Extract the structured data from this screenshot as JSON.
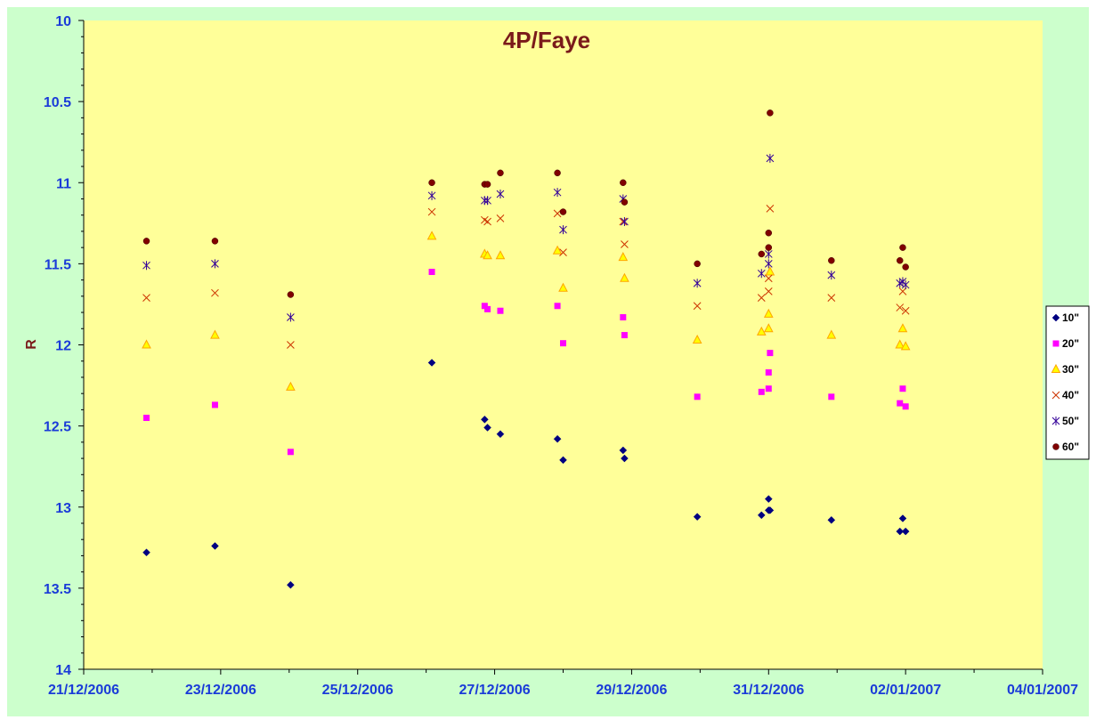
{
  "chart_data": {
    "type": "scatter",
    "title": "4P/Faye",
    "xlabel": "",
    "ylabel": "R",
    "y_inverted": true,
    "ylim": [
      10,
      14
    ],
    "yticks": [
      10,
      10.5,
      11,
      11.5,
      12,
      12.5,
      13,
      13.5,
      14
    ],
    "ytick_labels": [
      "10",
      "10.5",
      "11",
      "11.5",
      "12",
      "12.5",
      "13",
      "13.5",
      "14"
    ],
    "xlim": [
      "2006-12-21",
      "2007-01-04"
    ],
    "xticks": [
      "2006-12-21",
      "2006-12-23",
      "2006-12-25",
      "2006-12-27",
      "2006-12-29",
      "2006-12-31",
      "2007-01-02",
      "2007-01-04"
    ],
    "xtick_labels": [
      "21/12/2006",
      "23/12/2006",
      "25/12/2006",
      "27/12/2006",
      "29/12/2006",
      "31/12/2006",
      "02/01/2007",
      "04/01/2007"
    ],
    "legend_position": "right",
    "grid": false,
    "colors": {
      "outer_background": "#ccffcc",
      "plot_background": "#ffff99",
      "axis": "#000000"
    },
    "series": [
      {
        "name": "10\"",
        "marker": "diamond",
        "color": "#000080",
        "points": [
          [
            "2006-12-21T22:00",
            13.28
          ],
          [
            "2006-12-22T22:00",
            13.24
          ],
          [
            "2006-12-24T00:30",
            13.48
          ],
          [
            "2006-12-26T02:00",
            12.11
          ],
          [
            "2006-12-26T20:30",
            12.46
          ],
          [
            "2006-12-26T21:30",
            12.51
          ],
          [
            "2006-12-27T02:00",
            12.55
          ],
          [
            "2006-12-27T22:00",
            12.58
          ],
          [
            "2006-12-28T00:00",
            12.71
          ],
          [
            "2006-12-28T21:00",
            12.65
          ],
          [
            "2006-12-28T21:30",
            12.7
          ],
          [
            "2006-12-29T23:00",
            13.06
          ],
          [
            "2006-12-30T21:30",
            13.05
          ],
          [
            "2006-12-31T00:00",
            12.95
          ],
          [
            "2006-12-31T00:00",
            13.02
          ],
          [
            "2006-12-31T00:30",
            13.02
          ],
          [
            "2006-12-31T22:00",
            13.08
          ],
          [
            "2007-01-01T22:00",
            13.15
          ],
          [
            "2007-01-01T23:00",
            13.07
          ],
          [
            "2007-01-02T00:00",
            13.15
          ]
        ]
      },
      {
        "name": "20\"",
        "marker": "square",
        "color": "#ff00ff",
        "points": [
          [
            "2006-12-21T22:00",
            12.45
          ],
          [
            "2006-12-22T22:00",
            12.37
          ],
          [
            "2006-12-24T00:30",
            12.66
          ],
          [
            "2006-12-26T02:00",
            11.55
          ],
          [
            "2006-12-26T20:30",
            11.76
          ],
          [
            "2006-12-26T21:30",
            11.78
          ],
          [
            "2006-12-27T02:00",
            11.79
          ],
          [
            "2006-12-27T22:00",
            11.76
          ],
          [
            "2006-12-28T00:00",
            11.99
          ],
          [
            "2006-12-28T21:00",
            11.83
          ],
          [
            "2006-12-28T21:30",
            11.94
          ],
          [
            "2006-12-29T23:00",
            12.32
          ],
          [
            "2006-12-30T21:30",
            12.29
          ],
          [
            "2006-12-31T00:00",
            12.17
          ],
          [
            "2006-12-31T00:00",
            12.27
          ],
          [
            "2006-12-31T00:30",
            12.05
          ],
          [
            "2006-12-31T22:00",
            12.32
          ],
          [
            "2007-01-01T22:00",
            12.36
          ],
          [
            "2007-01-01T23:00",
            12.27
          ],
          [
            "2007-01-02T00:00",
            12.38
          ]
        ]
      },
      {
        "name": "30\"",
        "marker": "triangle",
        "color": "#ffa500",
        "points": [
          [
            "2006-12-21T22:00",
            12.0
          ],
          [
            "2006-12-22T22:00",
            11.94
          ],
          [
            "2006-12-24T00:30",
            12.26
          ],
          [
            "2006-12-26T02:00",
            11.33
          ],
          [
            "2006-12-26T20:30",
            11.44
          ],
          [
            "2006-12-26T21:30",
            11.45
          ],
          [
            "2006-12-27T02:00",
            11.45
          ],
          [
            "2006-12-27T22:00",
            11.42
          ],
          [
            "2006-12-28T00:00",
            11.65
          ],
          [
            "2006-12-28T21:00",
            11.46
          ],
          [
            "2006-12-28T21:30",
            11.59
          ],
          [
            "2006-12-29T23:00",
            11.97
          ],
          [
            "2006-12-30T21:30",
            11.92
          ],
          [
            "2006-12-31T00:00",
            11.81
          ],
          [
            "2006-12-31T00:00",
            11.9
          ],
          [
            "2006-12-31T00:30",
            11.55
          ],
          [
            "2006-12-31T22:00",
            11.94
          ],
          [
            "2007-01-01T22:00",
            12.0
          ],
          [
            "2007-01-01T23:00",
            11.9
          ],
          [
            "2007-01-02T00:00",
            12.01
          ]
        ]
      },
      {
        "name": "40\"",
        "marker": "x",
        "color": "#cc3300",
        "points": [
          [
            "2006-12-21T22:00",
            11.71
          ],
          [
            "2006-12-22T22:00",
            11.68
          ],
          [
            "2006-12-24T00:30",
            12.0
          ],
          [
            "2006-12-26T02:00",
            11.18
          ],
          [
            "2006-12-26T20:30",
            11.23
          ],
          [
            "2006-12-26T21:30",
            11.24
          ],
          [
            "2006-12-27T02:00",
            11.22
          ],
          [
            "2006-12-27T22:00",
            11.19
          ],
          [
            "2006-12-28T00:00",
            11.43
          ],
          [
            "2006-12-28T21:00",
            11.24
          ],
          [
            "2006-12-28T21:30",
            11.38
          ],
          [
            "2006-12-29T23:00",
            11.76
          ],
          [
            "2006-12-30T21:30",
            11.71
          ],
          [
            "2006-12-31T00:00",
            11.59
          ],
          [
            "2006-12-31T00:00",
            11.67
          ],
          [
            "2006-12-31T00:30",
            11.16
          ],
          [
            "2006-12-31T22:00",
            11.71
          ],
          [
            "2007-01-01T22:00",
            11.77
          ],
          [
            "2007-01-01T23:00",
            11.67
          ],
          [
            "2007-01-02T00:00",
            11.79
          ]
        ]
      },
      {
        "name": "50\"",
        "marker": "star",
        "color": "#330099",
        "points": [
          [
            "2006-12-21T22:00",
            11.51
          ],
          [
            "2006-12-22T22:00",
            11.5
          ],
          [
            "2006-12-24T00:30",
            11.83
          ],
          [
            "2006-12-26T02:00",
            11.08
          ],
          [
            "2006-12-26T20:30",
            11.11
          ],
          [
            "2006-12-26T21:30",
            11.11
          ],
          [
            "2006-12-27T02:00",
            11.07
          ],
          [
            "2006-12-27T22:00",
            11.06
          ],
          [
            "2006-12-28T00:00",
            11.29
          ],
          [
            "2006-12-28T21:00",
            11.1
          ],
          [
            "2006-12-28T21:30",
            11.24
          ],
          [
            "2006-12-29T23:00",
            11.62
          ],
          [
            "2006-12-30T21:30",
            11.56
          ],
          [
            "2006-12-31T00:00",
            11.44
          ],
          [
            "2006-12-31T00:00",
            11.5
          ],
          [
            "2006-12-31T00:30",
            10.85
          ],
          [
            "2006-12-31T22:00",
            11.57
          ],
          [
            "2007-01-01T22:00",
            11.62
          ],
          [
            "2007-01-01T23:00",
            11.61
          ],
          [
            "2007-01-02T00:00",
            11.63
          ]
        ]
      },
      {
        "name": "60\"",
        "marker": "circle",
        "color": "#800000",
        "points": [
          [
            "2006-12-21T22:00",
            11.36
          ],
          [
            "2006-12-22T22:00",
            11.36
          ],
          [
            "2006-12-24T00:30",
            11.69
          ],
          [
            "2006-12-26T02:00",
            11.0
          ],
          [
            "2006-12-26T20:30",
            11.01
          ],
          [
            "2006-12-26T21:30",
            11.01
          ],
          [
            "2006-12-27T02:00",
            10.94
          ],
          [
            "2006-12-27T22:00",
            10.94
          ],
          [
            "2006-12-28T00:00",
            11.18
          ],
          [
            "2006-12-28T21:00",
            11.0
          ],
          [
            "2006-12-28T21:30",
            11.12
          ],
          [
            "2006-12-29T23:00",
            11.5
          ],
          [
            "2006-12-30T21:30",
            11.44
          ],
          [
            "2006-12-31T00:00",
            11.31
          ],
          [
            "2006-12-31T00:00",
            11.4
          ],
          [
            "2006-12-31T00:30",
            10.57
          ],
          [
            "2006-12-31T22:00",
            11.48
          ],
          [
            "2007-01-01T22:00",
            11.48
          ],
          [
            "2007-01-01T23:00",
            11.4
          ],
          [
            "2007-01-02T00:00",
            11.52
          ]
        ]
      }
    ]
  }
}
